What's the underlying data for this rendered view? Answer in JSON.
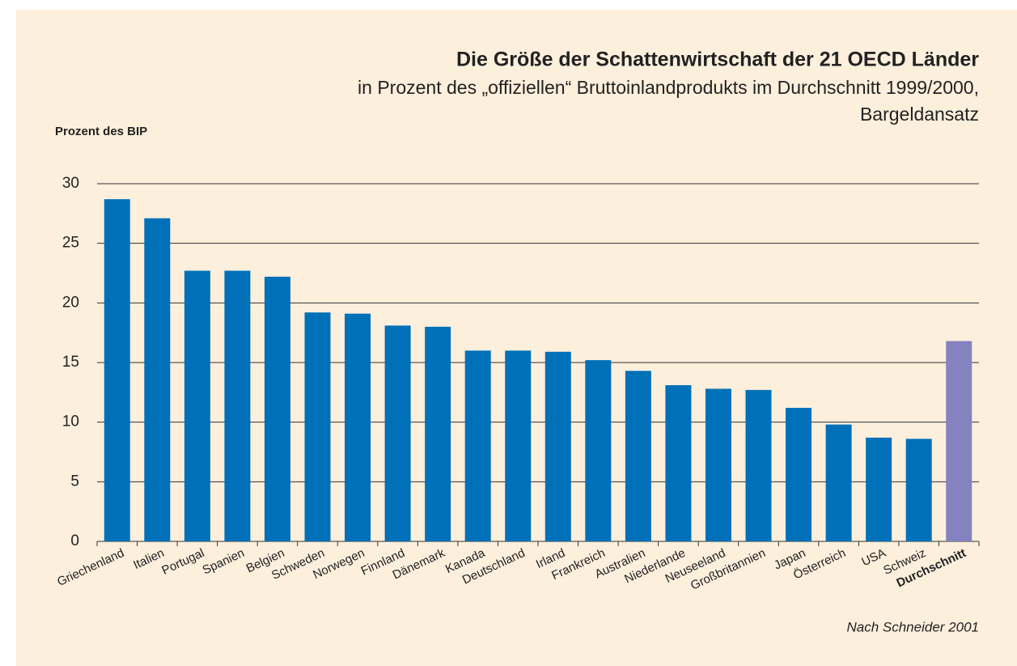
{
  "chart_data": {
    "type": "bar",
    "title": "Die Größe der Schattenwirtschaft der 21 OECD Länder",
    "subtitle": [
      "in Prozent des „offiziellen“ Bruttoinlandprodukts im Durchschnitt 1999/2000,",
      "Bargeldansatz"
    ],
    "y_label": "Prozent des BIP",
    "source": "Nach Schneider 2001",
    "categories": [
      "Griechenland",
      "Italien",
      "Portugal",
      "Spanien",
      "Belgien",
      "Schweden",
      "Norwegen",
      "Finnland",
      "Dänemark",
      "Kanada",
      "Deutschland",
      "Irland",
      "Frankreich",
      "Australien",
      "Niederlande",
      "Neuseeland",
      "Großbritannien",
      "Japan",
      "Österreich",
      "USA",
      "Schweiz",
      "Durchschnitt"
    ],
    "values": [
      28.7,
      27.1,
      22.7,
      22.7,
      22.2,
      19.2,
      19.1,
      18.1,
      18.0,
      16.0,
      16.0,
      15.9,
      15.2,
      14.3,
      13.1,
      12.8,
      12.7,
      11.2,
      9.8,
      8.7,
      8.6,
      16.8
    ],
    "colors": [
      "#0070b8",
      "#0070b8",
      "#0070b8",
      "#0070b8",
      "#0070b8",
      "#0070b8",
      "#0070b8",
      "#0070b8",
      "#0070b8",
      "#0070b8",
      "#0070b8",
      "#0070b8",
      "#0070b8",
      "#0070b8",
      "#0070b8",
      "#0070b8",
      "#0070b8",
      "#0070b8",
      "#0070b8",
      "#0070b8",
      "#0070b8",
      "#8582c0"
    ],
    "ylim": [
      0,
      30
    ],
    "yticks": [
      0,
      5,
      10,
      15,
      20,
      25,
      30
    ],
    "grid": true
  }
}
